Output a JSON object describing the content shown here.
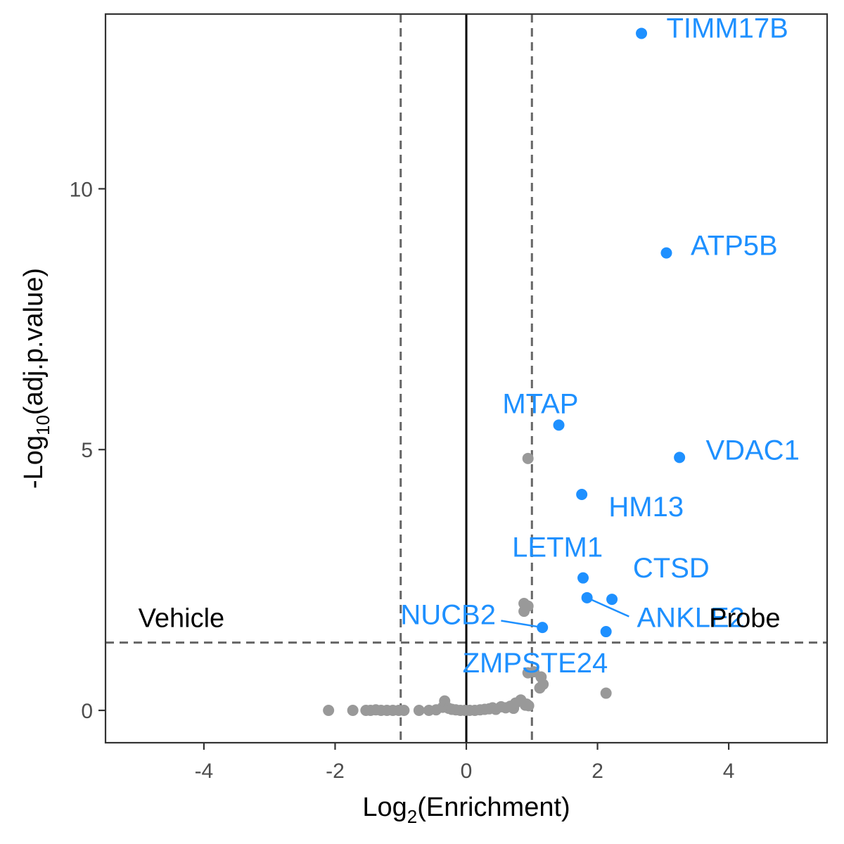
{
  "chart_data": {
    "type": "scatter",
    "title": "",
    "xlabel": "Log2(Enrichment)",
    "ylabel": "-Log10(adj.p.value)",
    "xlim": [
      -5.5,
      5.5
    ],
    "ylim": [
      -0.62,
      13.35
    ],
    "x_ticks": [
      -4,
      -2,
      0,
      2,
      4
    ],
    "y_ticks": [
      0,
      5,
      10
    ],
    "grid": false,
    "reference_lines": {
      "vertical_dashed": [
        -1,
        1
      ],
      "vertical_solid": [
        0
      ],
      "horizontal_dashed": [
        1.3
      ]
    },
    "region_labels": [
      {
        "text": "Vehicle",
        "x": -5.0,
        "y": 1.6
      },
      {
        "text": "Probe",
        "x": 3.7,
        "y": 1.6
      }
    ],
    "colors": {
      "highlight": "#1e90ff",
      "background": "#999999",
      "reference": "#666666",
      "axis": "#333333"
    },
    "highlighted": [
      {
        "label": "TIMM17B",
        "x": 2.67,
        "y": 12.98,
        "label_x": 3.05,
        "label_y": 12.9,
        "anchor": "start"
      },
      {
        "label": "ATP5B",
        "x": 3.05,
        "y": 8.77,
        "label_x": 3.42,
        "label_y": 8.73,
        "anchor": "start"
      },
      {
        "label": "MTAP",
        "x": 1.41,
        "y": 5.47,
        "label_x": 1.13,
        "label_y": 5.7,
        "anchor": "middle"
      },
      {
        "label": "VDAC1",
        "x": 3.25,
        "y": 4.85,
        "label_x": 3.65,
        "label_y": 4.81,
        "anchor": "start"
      },
      {
        "label": "HM13",
        "x": 1.76,
        "y": 4.14,
        "label_x": 2.17,
        "label_y": 3.72,
        "anchor": "start"
      },
      {
        "label": "LETM1",
        "x": 1.78,
        "y": 2.54,
        "label_x": 1.39,
        "label_y": 2.95,
        "anchor": "middle"
      },
      {
        "label": "CTSD",
        "x": 2.22,
        "y": 2.13,
        "label_x": 2.54,
        "label_y": 2.55,
        "anchor": "start"
      },
      {
        "label": "ANKLE2",
        "x": 1.84,
        "y": 2.16,
        "label_x": 2.6,
        "label_y": 1.6,
        "anchor": "start",
        "line_x": 2.48,
        "line_y": 1.8
      },
      {
        "label": "NUCB2",
        "x": 1.16,
        "y": 1.59,
        "label_x": 0.45,
        "label_y": 1.65,
        "anchor": "end",
        "line_x": 0.53,
        "line_y": 1.72
      },
      {
        "label": "ZMPSTE24",
        "x": 2.13,
        "y": 1.51,
        "label_x": 1.05,
        "label_y": 0.73,
        "anchor": "middle"
      }
    ],
    "background_points": [
      {
        "x": -2.1,
        "y": 0
      },
      {
        "x": -1.73,
        "y": 0
      },
      {
        "x": -1.53,
        "y": 0
      },
      {
        "x": -1.46,
        "y": 0
      },
      {
        "x": -1.38,
        "y": 0.01
      },
      {
        "x": -1.3,
        "y": 0
      },
      {
        "x": -1.21,
        "y": 0
      },
      {
        "x": -1.12,
        "y": 0
      },
      {
        "x": -1.03,
        "y": 0
      },
      {
        "x": -0.95,
        "y": 0
      },
      {
        "x": -0.72,
        "y": 0
      },
      {
        "x": -0.57,
        "y": 0
      },
      {
        "x": -0.46,
        "y": 0.01
      },
      {
        "x": -0.36,
        "y": 0.06
      },
      {
        "x": -0.33,
        "y": 0.18
      },
      {
        "x": -0.27,
        "y": 0.04
      },
      {
        "x": -0.22,
        "y": 0.02
      },
      {
        "x": -0.16,
        "y": 0.01
      },
      {
        "x": -0.09,
        "y": 0
      },
      {
        "x": -0.02,
        "y": 0
      },
      {
        "x": 0.05,
        "y": 0
      },
      {
        "x": 0.13,
        "y": 0
      },
      {
        "x": 0.21,
        "y": 0.01
      },
      {
        "x": 0.28,
        "y": 0.02
      },
      {
        "x": 0.35,
        "y": 0.03
      },
      {
        "x": 0.4,
        "y": 0.05
      },
      {
        "x": 0.45,
        "y": 0.02
      },
      {
        "x": 0.53,
        "y": 0.07
      },
      {
        "x": 0.6,
        "y": 0.05
      },
      {
        "x": 0.67,
        "y": 0.08
      },
      {
        "x": 0.72,
        "y": 0.04
      },
      {
        "x": 0.75,
        "y": 0.14
      },
      {
        "x": 0.83,
        "y": 0.2
      },
      {
        "x": 0.9,
        "y": 0.1
      },
      {
        "x": 0.92,
        "y": 0.12
      },
      {
        "x": 0.95,
        "y": 0.09
      },
      {
        "x": 0.94,
        "y": 0.72
      },
      {
        "x": 1.03,
        "y": 0.74
      },
      {
        "x": 1.14,
        "y": 0.64
      },
      {
        "x": 1.12,
        "y": 0.43
      },
      {
        "x": 1.17,
        "y": 0.5
      },
      {
        "x": 0.88,
        "y": 1.9
      },
      {
        "x": 0.88,
        "y": 2.05
      },
      {
        "x": 0.94,
        "y": 2.0
      },
      {
        "x": 0.94,
        "y": 4.83
      },
      {
        "x": 2.13,
        "y": 0.33
      }
    ]
  }
}
